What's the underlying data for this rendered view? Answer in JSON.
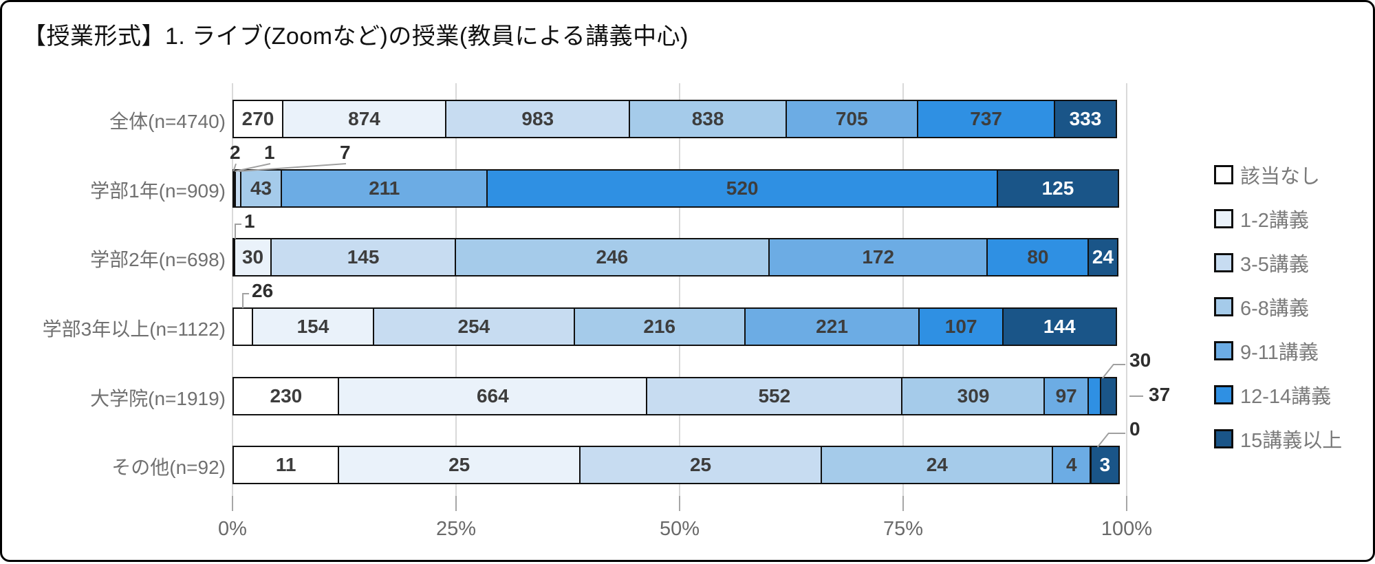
{
  "title": "【授業形式】1. ライブ(Zoomなど)の授業(教員による講義中心)",
  "chart_data": {
    "type": "bar",
    "stacked": true,
    "orientation": "horizontal",
    "title": "【授業形式】1. ライブ(Zoomなど)の授業(教員による講義中心)",
    "x_axis": {
      "ticks": [
        "0%",
        "25%",
        "50%",
        "75%",
        "100%"
      ],
      "range": [
        0,
        100
      ],
      "format": "percent",
      "grid": true
    },
    "legend": {
      "position": "right",
      "entries": [
        "該当なし",
        "1-2講義",
        "3-5講義",
        "6-8講義",
        "9-11講義",
        "12-14講義",
        "15講義以上"
      ]
    },
    "series_colors": [
      "#FFFFFF",
      "#EAF2FA",
      "#C7DCF1",
      "#A5CBEA",
      "#6CACE4",
      "#2F90E3",
      "#1A5588"
    ],
    "white_label_segment_indices": [
      6
    ],
    "categories": [
      "全体(n=4740)",
      "学部1年(n=909)",
      "学部2年(n=698)",
      "学部3年以上(n=1122)",
      "大学院(n=1919)",
      "その他(n=92)"
    ],
    "rows": [
      {
        "label": "全体(n=4740)",
        "n": 4740,
        "values": [
          270,
          874,
          983,
          838,
          705,
          737,
          333
        ],
        "outside_labels": []
      },
      {
        "label": "学部1年(n=909)",
        "n": 909,
        "values": [
          2,
          1,
          7,
          43,
          211,
          520,
          125
        ],
        "outside_labels": [
          {
            "segment": 0,
            "placement": "above-start",
            "slot": 0
          },
          {
            "segment": 1,
            "placement": "above-start",
            "slot": 1
          },
          {
            "segment": 2,
            "placement": "above-start",
            "slot": 2
          }
        ]
      },
      {
        "label": "学部2年(n=698)",
        "n": 698,
        "values": [
          1,
          30,
          145,
          246,
          172,
          80,
          24
        ],
        "outside_labels": [
          {
            "segment": 0,
            "placement": "elbow-left"
          }
        ]
      },
      {
        "label": "学部3年以上(n=1122)",
        "n": 1122,
        "values": [
          26,
          154,
          254,
          216,
          221,
          107,
          144
        ],
        "outside_labels": [
          {
            "segment": 0,
            "placement": "elbow-left"
          }
        ]
      },
      {
        "label": "大学院(n=1919)",
        "n": 1919,
        "values": [
          230,
          664,
          552,
          309,
          97,
          30,
          37
        ],
        "outside_labels": [
          {
            "segment": 5,
            "placement": "above-end"
          },
          {
            "segment": 6,
            "placement": "right"
          }
        ]
      },
      {
        "label": "その他(n=92)",
        "n": 92,
        "values": [
          11,
          25,
          25,
          24,
          4,
          0,
          3
        ],
        "outside_labels": [
          {
            "segment": 5,
            "placement": "above-end"
          }
        ]
      }
    ]
  },
  "colors": {
    "segment_border": "#101010",
    "gridline": "#d9d9d9",
    "leader_line": "#a0a0a0",
    "axis_text": "#696969",
    "category_text": "#707070",
    "data_label_dark": "#3d3d3d",
    "data_label_light": "#ffffff"
  }
}
